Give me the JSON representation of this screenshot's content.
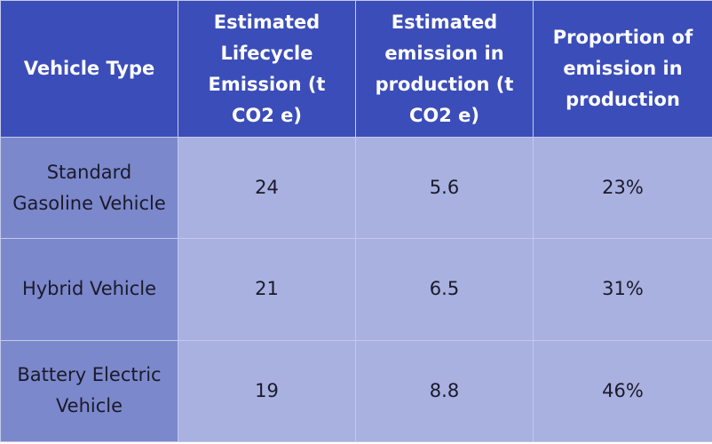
{
  "table": {
    "headers": [
      "Vehicle Type",
      "Estimated Lifecycle Emission (t CO2 e)",
      "Estimated emission in production (t CO2 e)",
      "Proportion of emission in production"
    ],
    "rows": [
      [
        "Standard Gasoline Vehicle",
        "24",
        "5.6",
        "23%"
      ],
      [
        "Hybrid Vehicle",
        "21",
        "6.5",
        "31%"
      ],
      [
        "Battery Electric Vehicle",
        "19",
        "8.8",
        "46%"
      ]
    ]
  },
  "colors": {
    "header": "#3b4db8",
    "first_column": "#7c88cc",
    "cell": "#a9b1e0"
  }
}
